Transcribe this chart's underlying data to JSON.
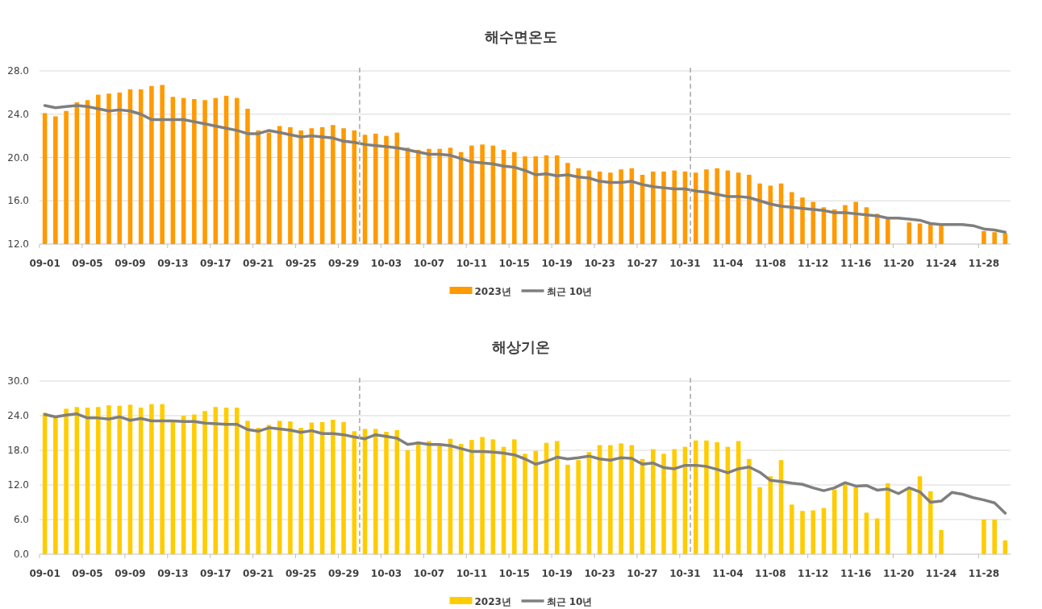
{
  "chart_data": [
    {
      "type": "bar",
      "title": "해수면온도",
      "categories": [
        "09-01",
        null,
        null,
        null,
        "09-05",
        null,
        null,
        null,
        "09-09",
        null,
        null,
        null,
        "09-13",
        null,
        null,
        null,
        "09-17",
        null,
        null,
        null,
        "09-21",
        null,
        null,
        null,
        "09-25",
        null,
        null,
        null,
        "09-29",
        null,
        null,
        null,
        "10-03",
        null,
        null,
        null,
        "10-07",
        null,
        null,
        null,
        "10-11",
        null,
        null,
        null,
        "10-15",
        null,
        null,
        null,
        "10-19",
        null,
        null,
        null,
        "10-23",
        null,
        null,
        null,
        "10-27",
        null,
        null,
        null,
        "10-31",
        null,
        null,
        null,
        "11-04",
        null,
        null,
        null,
        "11-08",
        null,
        null,
        null,
        "11-12",
        null,
        null,
        null,
        "11-16",
        null,
        null,
        null,
        "11-20",
        null,
        null,
        null,
        "11-24",
        null,
        null,
        null,
        "11-28",
        null,
        null
      ],
      "series": [
        {
          "name": "2023년",
          "color": "#ff9a00",
          "values": [
            24.1,
            23.8,
            24.3,
            25.1,
            25.3,
            25.8,
            25.9,
            26.0,
            26.3,
            26.3,
            26.6,
            26.7,
            25.6,
            25.5,
            25.4,
            25.3,
            25.5,
            25.7,
            25.5,
            24.5,
            22.5,
            22.3,
            22.9,
            22.8,
            22.5,
            22.7,
            22.8,
            23.0,
            22.7,
            22.5,
            22.1,
            22.2,
            22.0,
            22.3,
            20.9,
            20.7,
            20.8,
            20.8,
            20.9,
            20.5,
            21.1,
            21.2,
            21.1,
            20.7,
            20.5,
            20.1,
            20.1,
            20.2,
            20.2,
            19.5,
            19.0,
            18.8,
            18.7,
            18.6,
            18.9,
            19.0,
            18.4,
            18.7,
            18.7,
            18.8,
            18.7,
            18.6,
            18.9,
            19.0,
            18.8,
            18.6,
            18.4,
            17.6,
            17.4,
            17.6,
            16.8,
            16.3,
            15.9,
            15.4,
            15.2,
            15.6,
            15.9,
            15.4,
            14.8,
            14.3,
            null,
            14.0,
            13.9,
            13.8,
            13.7,
            null,
            null,
            null,
            13.2,
            13.1,
            13.0
          ]
        },
        {
          "name": "최근 10년",
          "type": "line",
          "color": "#7f7f7f",
          "values": [
            24.8,
            24.6,
            24.7,
            24.8,
            24.7,
            24.5,
            24.3,
            24.4,
            24.3,
            24.0,
            23.5,
            23.5,
            23.5,
            23.5,
            23.3,
            23.1,
            22.9,
            22.7,
            22.5,
            22.2,
            22.2,
            22.5,
            22.3,
            22.1,
            21.9,
            22.0,
            21.9,
            21.8,
            21.5,
            21.4,
            21.2,
            21.1,
            21.0,
            20.9,
            20.7,
            20.5,
            20.3,
            20.3,
            20.2,
            19.9,
            19.6,
            19.5,
            19.4,
            19.2,
            19.1,
            18.8,
            18.4,
            18.5,
            18.3,
            18.4,
            18.2,
            18.1,
            17.8,
            17.7,
            17.7,
            17.8,
            17.5,
            17.3,
            17.2,
            17.1,
            17.1,
            16.9,
            16.8,
            16.6,
            16.4,
            16.4,
            16.3,
            16.0,
            15.7,
            15.5,
            15.4,
            15.3,
            15.2,
            15.1,
            14.9,
            14.9,
            14.8,
            14.7,
            14.6,
            14.4,
            14.4,
            14.3,
            14.2,
            13.9,
            13.8,
            13.8,
            13.8,
            13.7,
            13.4,
            13.3,
            13.1
          ]
        }
      ],
      "ylim": [
        12,
        28
      ],
      "yticks": [
        {
          "value": 12,
          "label": "12.0"
        },
        {
          "value": 16,
          "label": "16.0"
        },
        {
          "value": 20,
          "label": "20.0"
        },
        {
          "value": 24,
          "label": "24.0"
        },
        {
          "value": 28,
          "label": "28.0"
        }
      ],
      "grid": "y",
      "legend": "bottom"
    },
    {
      "type": "bar",
      "title": "해상기온",
      "categories": [
        "09-01",
        null,
        null,
        null,
        "09-05",
        null,
        null,
        null,
        "09-09",
        null,
        null,
        null,
        "09-13",
        null,
        null,
        null,
        "09-17",
        null,
        null,
        null,
        "09-21",
        null,
        null,
        null,
        "09-25",
        null,
        null,
        null,
        "09-29",
        null,
        null,
        null,
        "10-03",
        null,
        null,
        null,
        "10-07",
        null,
        null,
        null,
        "10-11",
        null,
        null,
        null,
        "10-15",
        null,
        null,
        null,
        "10-19",
        null,
        null,
        null,
        "10-23",
        null,
        null,
        null,
        "10-27",
        null,
        null,
        null,
        "10-31",
        null,
        null,
        null,
        "11-04",
        null,
        null,
        null,
        "11-08",
        null,
        null,
        null,
        "11-12",
        null,
        null,
        null,
        "11-16",
        null,
        null,
        null,
        "11-20",
        null,
        null,
        null,
        "11-24",
        null,
        null,
        null,
        "11-28",
        null,
        null
      ],
      "series": [
        {
          "name": "2023년",
          "color": "#ffcc00",
          "values": [
            24.5,
            23.6,
            25.2,
            25.5,
            25.4,
            25.5,
            25.8,
            25.7,
            25.9,
            25.4,
            26.0,
            26.0,
            22.9,
            24.0,
            24.2,
            24.8,
            25.5,
            25.4,
            25.4,
            23.1,
            21.9,
            22.4,
            23.1,
            23.0,
            21.9,
            22.8,
            22.9,
            23.3,
            22.9,
            21.3,
            21.7,
            21.7,
            21.2,
            21.5,
            18.0,
            19.5,
            19.6,
            19.1,
            20.0,
            19.1,
            19.8,
            20.3,
            19.9,
            18.6,
            19.9,
            17.4,
            17.9,
            19.3,
            19.6,
            15.5,
            16.3,
            17.7,
            18.9,
            18.9,
            19.2,
            18.9,
            16.5,
            18.2,
            17.4,
            18.2,
            18.6,
            19.7,
            19.7,
            19.4,
            18.6,
            19.6,
            16.5,
            11.6,
            13.5,
            16.3,
            8.6,
            7.5,
            7.6,
            8.0,
            11.2,
            12.1,
            11.6,
            7.2,
            6.2,
            12.3,
            null,
            11.4,
            13.5,
            10.9,
            4.2,
            null,
            null,
            null,
            6.0,
            6.0,
            2.4
          ]
        },
        {
          "name": "최근 10년",
          "type": "line",
          "color": "#7f7f7f",
          "values": [
            24.2,
            23.8,
            24.1,
            24.3,
            23.6,
            23.6,
            23.4,
            23.8,
            23.2,
            23.5,
            23.1,
            23.1,
            23.1,
            23.0,
            23.0,
            22.7,
            22.6,
            22.5,
            22.5,
            21.6,
            21.3,
            21.9,
            21.7,
            21.5,
            21.1,
            21.4,
            20.9,
            20.9,
            20.7,
            20.3,
            20.0,
            20.7,
            20.4,
            20.1,
            19.0,
            19.3,
            19.0,
            19.0,
            18.8,
            18.3,
            17.8,
            17.8,
            17.7,
            17.5,
            17.2,
            16.5,
            15.6,
            16.1,
            16.8,
            16.5,
            16.7,
            17.0,
            16.5,
            16.3,
            16.7,
            16.6,
            15.6,
            15.8,
            15.0,
            14.8,
            15.4,
            15.4,
            15.2,
            14.7,
            14.1,
            14.8,
            15.1,
            14.2,
            12.8,
            12.6,
            12.3,
            12.1,
            11.5,
            11.0,
            11.5,
            12.4,
            11.8,
            11.9,
            11.1,
            11.3,
            10.5,
            11.5,
            10.8,
            9.0,
            9.2,
            10.7,
            10.4,
            9.8,
            9.4,
            8.9,
            7.1
          ]
        }
      ],
      "ylim": [
        0,
        30
      ],
      "yticks": [
        {
          "value": 0,
          "label": "0.0"
        },
        {
          "value": 6,
          "label": "6.0"
        },
        {
          "value": 12,
          "label": "12.0"
        },
        {
          "value": 18,
          "label": "18.0"
        },
        {
          "value": 24,
          "label": "24.0"
        },
        {
          "value": 30,
          "label": "30.0"
        }
      ],
      "grid": "y",
      "legend": "bottom"
    }
  ]
}
